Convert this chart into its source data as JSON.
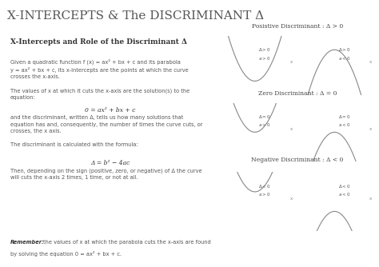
{
  "title": "X-INTERCEPTS & The DISCRIMINANT Δ",
  "title_fontsize": 11,
  "title_color": "#555555",
  "bg_color": "#ffffff",
  "panel_bg": "#f0f0f0",
  "section_title": "X-Intercepts and Role of the Discriminant Δ",
  "body_text": [
    "Given a quadratic function f (x) = ax² + bx + c and its parabola",
    "y = ax² + bx + c, its x-intercepts are the points at which the curve",
    "crosses the x-axis.",
    "",
    "The values of x at which it cuts the x-axis are the solution(s) to the",
    "equation:"
  ],
  "equation1": "0 = ax² + bx + c",
  "body_text2": [
    "and the discriminant, written Δ, tells us how many solutions that",
    "equation has and, consequently, the number of times the curve cuts, or",
    "crosses, the x axis.",
    "",
    "The discriminant is calculated with the formula:"
  ],
  "equation2": "Δ = b² − 4ac",
  "body_text3": [
    "Then, depending on the sign (positive, zero, or negative) of Δ the curve",
    "will cuts the x-axis 2 times, 1 time, or not at all."
  ],
  "remember_text": "Remember: the values of x at which the parabola cuts the x-axis are found\nby solving the equation 0 = ax² + bx + c.",
  "pos_disc_title": "Posistive Discriminant : Δ > 0",
  "zero_disc_title": "Zero Discriminant : Δ = 0",
  "neg_disc_title": "Negative Discriminant : Δ < 0",
  "curve_color": "#888888",
  "axis_color": "#888888",
  "text_color": "#555555"
}
